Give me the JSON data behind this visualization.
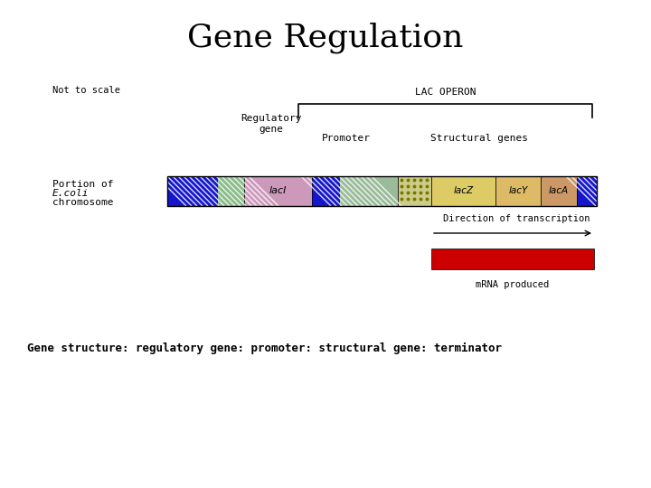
{
  "title": "Gene Regulation",
  "title_fontsize": 26,
  "subtitle_not_to_scale": "Not to scale",
  "label_lac_operon": "LAC OPERON",
  "label_regulatory": "Regulatory\ngene",
  "label_promoter": "Promoter",
  "label_structural": "Structural genes",
  "label_portion_line1": "Portion of",
  "label_portion_line2": "E.coli",
  "label_portion_line3": "chromosome",
  "label_direction": "Direction of transcription",
  "label_mrna": "mRNA produced",
  "label_lacI": "lacI",
  "label_lacZ": "lacZ",
  "label_lacY": "lacY",
  "label_lacA": "lacA",
  "gene_structure_text": "Gene structure: regulatory gene: promoter: structural gene: terminator",
  "bg_color": "#ffffff",
  "blue_color": "#1515cc",
  "lacI_color": "#cc99bb",
  "promoter_color": "#99bb99",
  "dotted_color": "#cccc88",
  "lacZ_color": "#ddcc66",
  "lacY_color": "#ddbb66",
  "lacA_color": "#cc9966",
  "mrna_color": "#cc0000"
}
